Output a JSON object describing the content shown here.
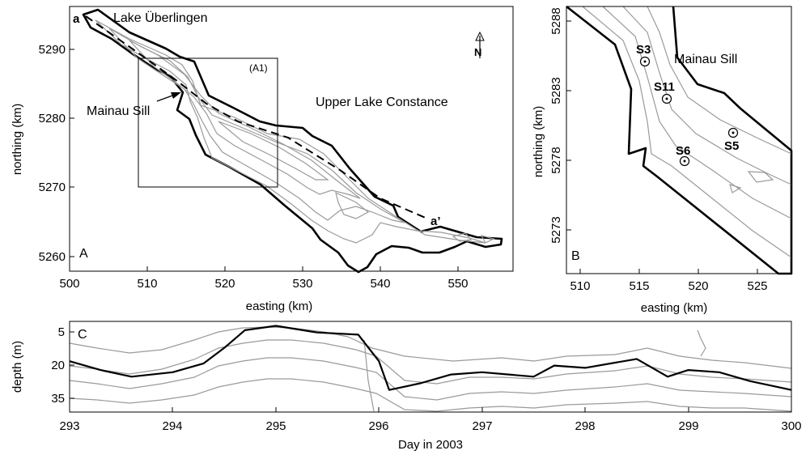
{
  "panel_a": {
    "letter": "A",
    "xlabel": "easting (km)",
    "ylabel": "northing (km)",
    "x_ticks": [
      "500",
      "510",
      "520",
      "530",
      "540",
      "550"
    ],
    "y_ticks": [
      "5260",
      "5270",
      "5280",
      "5290"
    ],
    "x_range": [
      500,
      557
    ],
    "y_range": [
      5258,
      5296
    ],
    "labels": {
      "lake_uberlingen": "Lake Überlingen",
      "upper_lake": "Upper Lake Constance",
      "mainau_sill": "Mainau Sill",
      "inset": "(A1)",
      "section_start": "a",
      "section_end": "a’",
      "north": "N"
    },
    "inset_box_km": {
      "x": [
        509,
        527
      ],
      "y": [
        5270.5,
        5289.2
      ]
    },
    "section_line_km": [
      [
        503.2,
        5294.8
      ],
      [
        509,
        5290
      ],
      [
        514,
        5286
      ],
      [
        518,
        5282
      ],
      [
        522,
        5279
      ],
      [
        529,
        5277
      ],
      [
        536,
        5273
      ],
      [
        541,
        5269
      ],
      [
        547,
        5265.7
      ]
    ]
  },
  "panel_b": {
    "letter": "B",
    "xlabel": "easting (km)",
    "ylabel": "northing (km)",
    "x_ticks": [
      "510",
      "515",
      "520",
      "525"
    ],
    "y_ticks": [
      "5273",
      "5278",
      "5283",
      "5288"
    ],
    "x_range": [
      508,
      527
    ],
    "y_range": [
      5269.5,
      5288.5
    ],
    "labels": {
      "mainau_sill": "Mainau Sill"
    },
    "stations": [
      {
        "name": "S3",
        "x": 515.2,
        "y": 5285.5
      },
      {
        "name": "S11",
        "x": 517.0,
        "y": 5282.3
      },
      {
        "name": "S6",
        "x": 518.3,
        "y": 5277.6
      },
      {
        "name": "S5",
        "x": 522.4,
        "y": 5279.7
      }
    ]
  },
  "panel_c": {
    "letter": "C",
    "xlabel": "Day in 2003",
    "ylabel": "depth (m)",
    "x_ticks": [
      "293",
      "294",
      "295",
      "296",
      "297",
      "298",
      "299",
      "300"
    ],
    "y_ticks": [
      "5",
      "20",
      "35"
    ],
    "x_range": [
      293,
      300
    ],
    "y_range": [
      0,
      41
    ],
    "thermocline_series": [
      [
        293,
        18
      ],
      [
        293.3,
        22
      ],
      [
        293.6,
        25
      ],
      [
        294,
        23
      ],
      [
        294.3,
        19
      ],
      [
        294.5,
        12
      ],
      [
        294.7,
        4
      ],
      [
        295,
        2
      ],
      [
        295.4,
        5
      ],
      [
        295.8,
        6
      ],
      [
        296,
        18
      ],
      [
        296.1,
        31
      ],
      [
        296.4,
        28
      ],
      [
        296.7,
        24
      ],
      [
        297,
        23
      ],
      [
        297.5,
        25
      ],
      [
        297.7,
        20
      ],
      [
        298,
        21
      ],
      [
        298.5,
        17
      ],
      [
        298.8,
        25
      ],
      [
        299,
        22
      ],
      [
        299.3,
        23
      ],
      [
        299.6,
        27
      ],
      [
        300,
        31
      ]
    ]
  }
}
